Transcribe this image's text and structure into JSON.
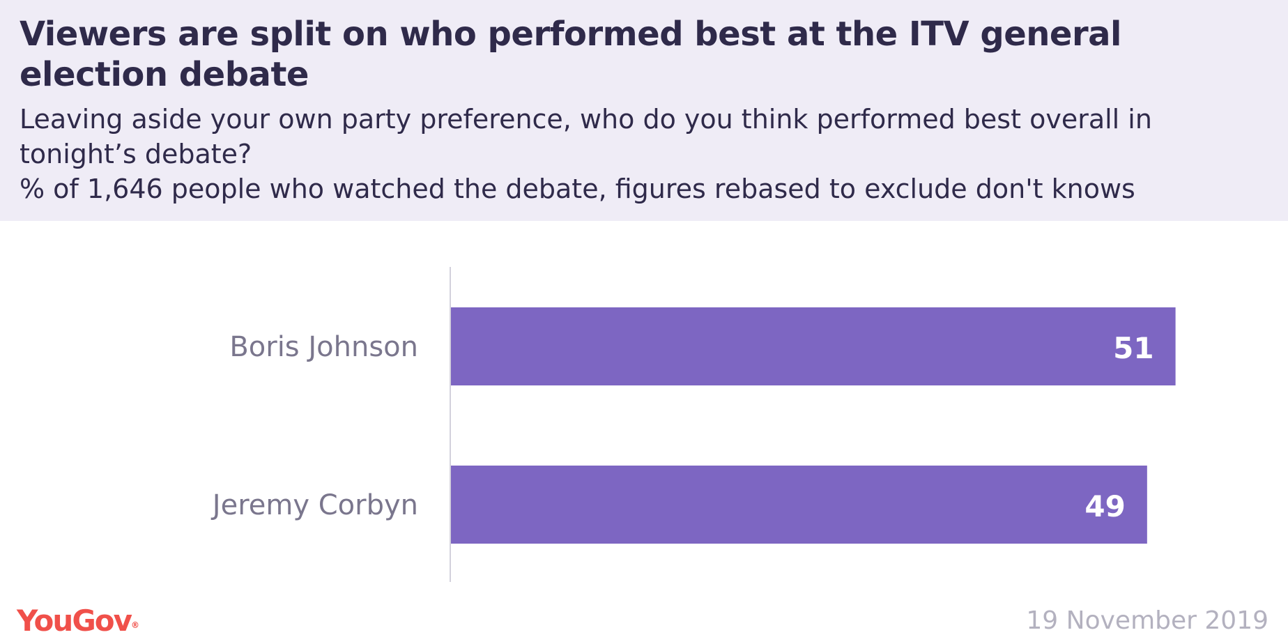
{
  "header": {
    "title": "Viewers are split on who performed best at the ITV general election debate",
    "subtitle": "Leaving aside your own party preference, who do you think performed best overall in tonight’s debate?",
    "base_note": "% of 1,646 people who watched the debate, figures rebased to exclude don't knows"
  },
  "footer": {
    "logo_text": "YouGov",
    "logo_mark": "®",
    "date": "19 November 2019"
  },
  "colors": {
    "bar": "#7d66c2",
    "header_bg": "#efecf6",
    "logo": "#f0504a"
  },
  "chart_data": {
    "type": "bar",
    "orientation": "horizontal",
    "categories": [
      "Boris Johnson",
      "Jeremy Corbyn"
    ],
    "values": [
      51,
      49
    ],
    "xlim": [
      0,
      52
    ],
    "grid": false
  }
}
